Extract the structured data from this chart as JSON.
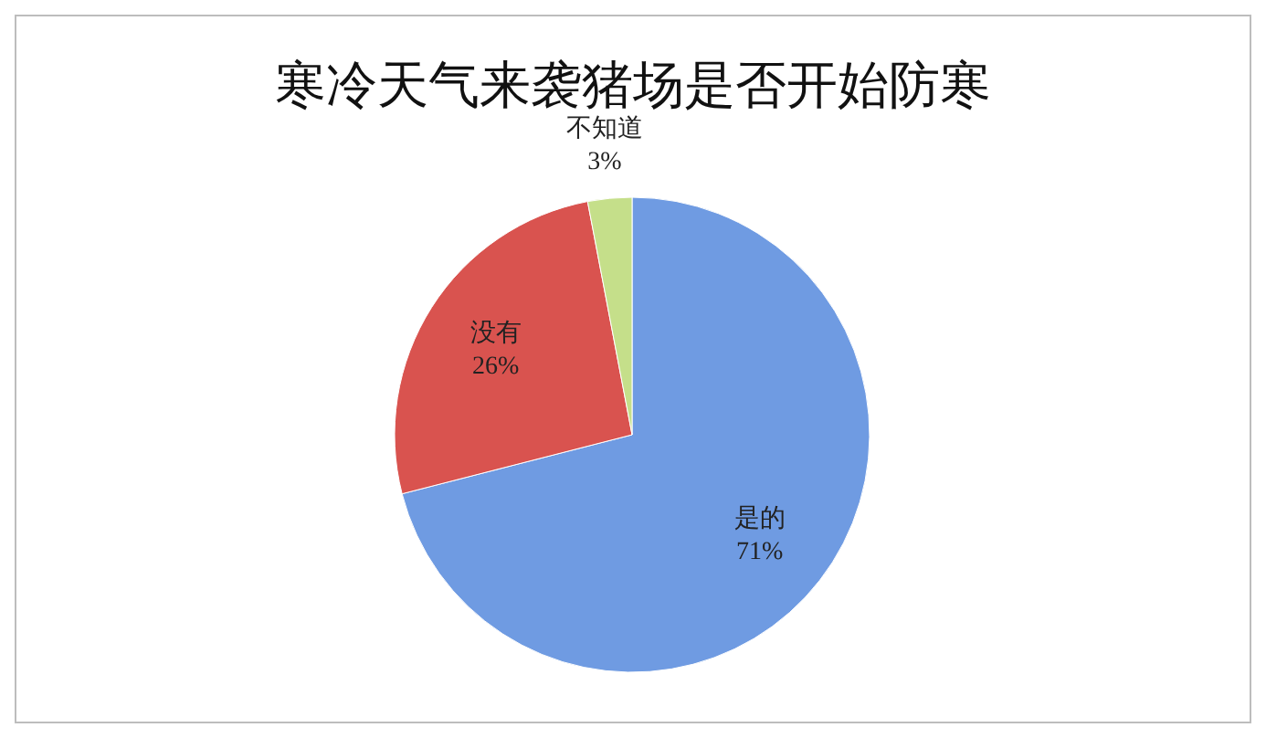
{
  "chart_data": {
    "type": "pie",
    "title": "寒冷天气来袭猪场是否开始防寒",
    "categories": [
      "是的",
      "没有",
      "不知道"
    ],
    "values": [
      71,
      26,
      3
    ],
    "value_labels": [
      "71%",
      "26%",
      "3%"
    ],
    "colors": [
      "#6f9be2",
      "#d9534f",
      "#c5df8a"
    ]
  }
}
